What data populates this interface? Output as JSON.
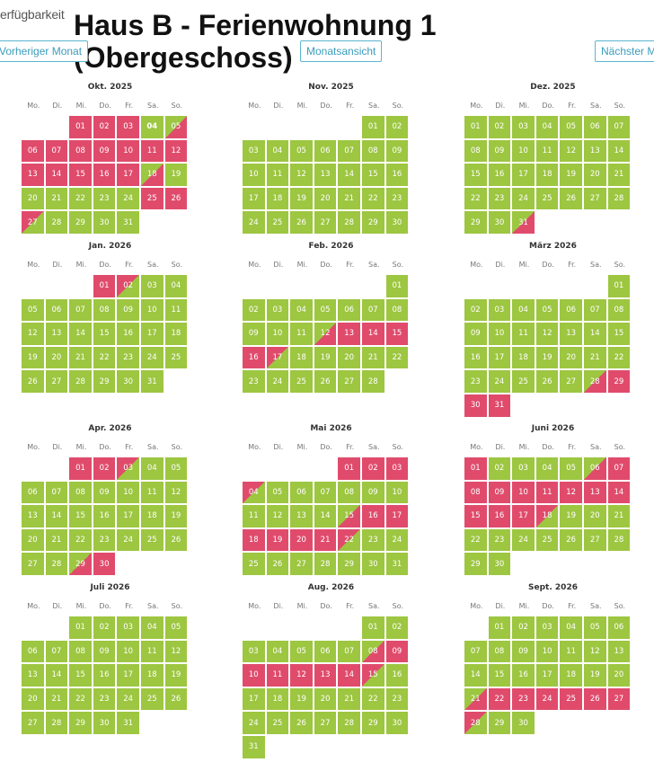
{
  "header": {
    "availability_label": "erfügbarkeit",
    "title_line1": "Haus B - Ferienwohnung 1",
    "title_line2": "(Obergeschoss)"
  },
  "nav": {
    "prev_label": "Vorheriger Monat",
    "month_view_label": "Monatsansicht",
    "next_label": "Nächster Monat"
  },
  "weekdays": [
    "Mo.",
    "Di.",
    "Mi.",
    "Do.",
    "Fr.",
    "Sa.",
    "So."
  ],
  "legend_colors": {
    "free": "#9dc641",
    "booked": "#e04b6c"
  },
  "months": [
    {
      "title": "Okt. 2025",
      "offset": 2,
      "days": 31,
      "booked": [
        1,
        2,
        3,
        6,
        7,
        8,
        9,
        10,
        11,
        12,
        13,
        14,
        15,
        16,
        17,
        25,
        26
      ],
      "arr": [
        5,
        18
      ],
      "dep": [
        27
      ],
      "today": 4
    },
    {
      "title": "Nov. 2025",
      "offset": 5,
      "days": 30,
      "booked": [],
      "arr": [],
      "dep": []
    },
    {
      "title": "Dez. 2025",
      "offset": 0,
      "days": 31,
      "booked": [],
      "arr": [
        31
      ],
      "dep": []
    },
    {
      "title": "Jan. 2026",
      "offset": 3,
      "days": 31,
      "booked": [
        1
      ],
      "arr": [],
      "dep": [
        2
      ]
    },
    {
      "title": "Feb. 2026",
      "offset": 6,
      "days": 28,
      "booked": [
        13,
        14,
        15,
        16
      ],
      "arr": [
        12
      ],
      "dep": [
        17
      ]
    },
    {
      "title": "März 2026",
      "offset": 6,
      "days": 31,
      "booked": [
        29,
        30,
        31
      ],
      "arr": [
        28
      ],
      "dep": []
    },
    {
      "title": "Apr. 2026",
      "offset": 2,
      "days": 30,
      "booked": [
        1,
        2,
        30
      ],
      "arr": [
        29
      ],
      "dep": [
        3
      ]
    },
    {
      "title": "Mai 2026",
      "offset": 4,
      "days": 31,
      "booked": [
        1,
        2,
        3,
        16,
        17,
        18,
        19,
        20,
        21
      ],
      "arr": [
        15
      ],
      "dep": [
        4,
        22
      ]
    },
    {
      "title": "Juni 2026",
      "offset": 0,
      "days": 30,
      "booked": [
        1,
        7,
        8,
        9,
        10,
        11,
        12,
        13,
        14,
        15,
        16,
        17
      ],
      "arr": [
        6
      ],
      "dep": [
        18
      ]
    },
    {
      "title": "Juli 2026",
      "offset": 2,
      "days": 31,
      "booked": [],
      "arr": [],
      "dep": []
    },
    {
      "title": "Aug. 2026",
      "offset": 5,
      "days": 31,
      "booked": [
        9,
        10,
        11,
        12,
        13,
        14
      ],
      "arr": [
        8
      ],
      "dep": [
        15
      ]
    },
    {
      "title": "Sept. 2026",
      "offset": 1,
      "days": 30,
      "booked": [
        22,
        23,
        24,
        25,
        26,
        27
      ],
      "arr": [
        21
      ],
      "dep": [
        28
      ]
    }
  ]
}
